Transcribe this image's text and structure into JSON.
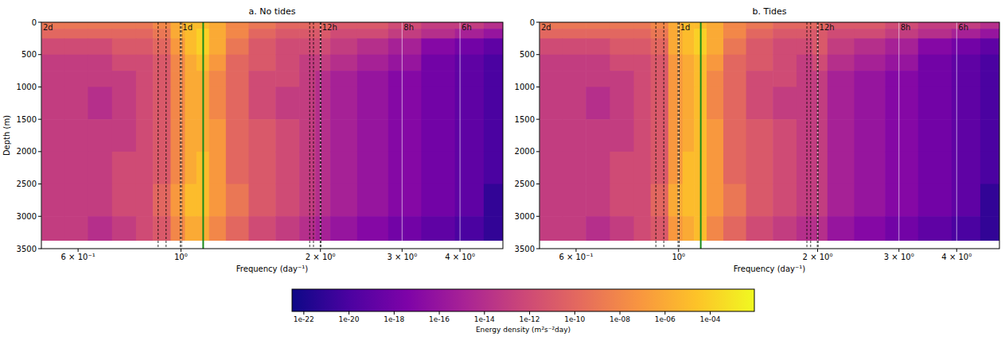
{
  "chart_data": [
    {
      "type": "heatmap",
      "title": "a. No tides",
      "x_label": "Frequency (day⁻¹)",
      "y_label": "Depth (m)",
      "log": "x",
      "grid": false,
      "xlim": [
        0.5,
        4.95
      ],
      "ylim": [
        3500,
        0
      ],
      "xticks": [
        {
          "value": 0.6,
          "label": "6 × 10⁻¹"
        },
        {
          "value": 1,
          "label": "10⁰"
        },
        {
          "value": 2,
          "label": "2 × 10⁰"
        },
        {
          "value": 3,
          "label": "3 × 10⁰"
        },
        {
          "value": 4,
          "label": "4 × 10⁰"
        }
      ],
      "yticks": [
        0,
        500,
        1000,
        1500,
        2000,
        2500,
        3000,
        3500
      ],
      "period_lines": [
        {
          "x": 0.5,
          "label": "2d"
        },
        {
          "x": 1,
          "label": "1d"
        },
        {
          "x": 2,
          "label": "12h"
        },
        {
          "x": 3,
          "label": "8h"
        },
        {
          "x": 4,
          "label": "6h"
        }
      ],
      "tidal_lines": [
        0.893,
        0.929,
        0.997,
        1.003,
        1.896,
        1.932,
        1.997,
        2.005
      ],
      "inertial_line": 1.117,
      "x_edges": [
        0.5,
        0.56,
        0.63,
        0.71,
        0.8,
        0.87,
        0.95,
        1.02,
        1.08,
        1.15,
        1.25,
        1.4,
        1.6,
        1.8,
        1.95,
        2.1,
        2.4,
        2.8,
        3.3,
        3.9,
        4.5,
        4.95
      ],
      "y_edges": [
        0,
        100,
        250,
        500,
        750,
        1000,
        1500,
        2000,
        2500,
        3000,
        3370
      ],
      "cells": [
        [
          1e-09,
          1e-09,
          1e-09,
          1e-09,
          1e-09,
          1e-08,
          1e-06,
          1e-05,
          1e-05,
          1e-06,
          1e-08,
          1e-09,
          1e-10,
          1e-10,
          1e-10,
          1e-11,
          1e-11,
          1e-12,
          1e-13,
          1e-13,
          1e-14
        ],
        [
          1e-10,
          1e-10,
          1e-10,
          1e-10,
          1e-10,
          1e-09,
          1e-06,
          1e-05,
          0.0001,
          1e-06,
          1e-08,
          1e-10,
          1e-11,
          1e-11,
          1e-11,
          1e-12,
          1e-12,
          1e-13,
          1e-14,
          1e-15,
          1e-16
        ],
        [
          1e-12,
          1e-12,
          1e-12,
          1e-11,
          1e-11,
          1e-10,
          1e-07,
          1e-05,
          0.0001,
          1e-06,
          1e-09,
          1e-11,
          1e-12,
          1e-12,
          1e-12,
          1e-13,
          1e-14,
          1e-15,
          1e-17,
          1e-18,
          1e-19
        ],
        [
          1e-13,
          1e-13,
          1e-13,
          1e-12,
          1e-12,
          1e-11,
          1e-08,
          1e-06,
          1e-05,
          1e-07,
          1e-10,
          1e-11,
          1e-12,
          1e-13,
          1e-13,
          1e-14,
          1e-15,
          1e-16,
          1e-18,
          1e-19,
          1e-20
        ],
        [
          1e-13,
          1e-13,
          1e-13,
          1e-13,
          1e-12,
          1e-11,
          1e-08,
          1e-06,
          1e-06,
          1e-08,
          1e-10,
          1e-12,
          1e-12,
          1e-13,
          1e-14,
          1e-15,
          1e-16,
          1e-17,
          1e-18,
          1e-19,
          1e-20
        ],
        [
          1e-13,
          1e-13,
          1e-14,
          1e-13,
          1e-12,
          1e-11,
          1e-08,
          1e-06,
          1e-06,
          1e-08,
          1e-10,
          1e-12,
          1e-13,
          1e-13,
          1e-14,
          1e-15,
          1e-16,
          1e-17,
          1e-18,
          1e-19,
          1e-20
        ],
        [
          1e-13,
          1e-13,
          1e-13,
          1e-13,
          1e-12,
          1e-11,
          1e-08,
          1e-06,
          1e-06,
          1e-07,
          1e-10,
          1e-11,
          1e-12,
          1e-13,
          1e-14,
          1e-15,
          1e-16,
          1e-17,
          1e-18,
          1e-19,
          1e-20
        ],
        [
          1e-13,
          1e-13,
          1e-13,
          1e-12,
          1e-12,
          1e-11,
          1e-08,
          1e-06,
          1e-05,
          1e-07,
          1e-10,
          1e-11,
          1e-12,
          1e-13,
          1e-14,
          1e-15,
          1e-16,
          1e-17,
          1e-18,
          1e-19,
          1e-20
        ],
        [
          1e-13,
          1e-13,
          1e-13,
          1e-12,
          1e-12,
          1e-10,
          1e-07,
          1e-05,
          1e-05,
          1e-07,
          1e-09,
          1e-11,
          1e-12,
          1e-13,
          1e-14,
          1e-15,
          1e-16,
          1e-17,
          1e-18,
          1e-19,
          1e-21
        ],
        [
          1e-13,
          1e-13,
          1e-14,
          1e-13,
          1e-12,
          1e-11,
          1e-08,
          1e-06,
          1e-06,
          1e-08,
          1e-10,
          1e-12,
          1e-13,
          1e-14,
          1e-15,
          1e-16,
          1e-17,
          1e-18,
          1e-19,
          1e-20,
          1e-21
        ]
      ]
    },
    {
      "type": "heatmap",
      "title": "b. Tides",
      "x_label": "Frequency (day⁻¹)",
      "log": "x",
      "grid": false,
      "xlim": [
        0.5,
        4.95
      ],
      "ylim": [
        3500,
        0
      ],
      "xticks": [
        {
          "value": 0.6,
          "label": "6 × 10⁻¹"
        },
        {
          "value": 1,
          "label": "10⁰"
        },
        {
          "value": 2,
          "label": "2 × 10⁰"
        },
        {
          "value": 3,
          "label": "3 × 10⁰"
        },
        {
          "value": 4,
          "label": "4 × 10⁰"
        }
      ],
      "yticks": [
        0,
        500,
        1000,
        1500,
        2000,
        2500,
        3000,
        3500
      ],
      "period_lines": [
        {
          "x": 0.5,
          "label": "2d"
        },
        {
          "x": 1,
          "label": "1d"
        },
        {
          "x": 2,
          "label": "12h"
        },
        {
          "x": 3,
          "label": "8h"
        },
        {
          "x": 4,
          "label": "6h"
        }
      ],
      "tidal_lines": [
        0.893,
        0.929,
        0.997,
        1.003,
        1.896,
        1.932,
        1.997,
        2.005
      ],
      "inertial_line": 1.117,
      "x_edges": [
        0.5,
        0.56,
        0.63,
        0.71,
        0.8,
        0.87,
        0.95,
        1.02,
        1.08,
        1.15,
        1.25,
        1.4,
        1.6,
        1.8,
        1.95,
        2.1,
        2.4,
        2.8,
        3.3,
        3.9,
        4.5,
        4.95
      ],
      "y_edges": [
        0,
        100,
        250,
        500,
        750,
        1000,
        1500,
        2000,
        2500,
        3000,
        3370
      ],
      "cells": [
        [
          1e-09,
          1e-09,
          1e-09,
          1e-09,
          1e-09,
          1e-08,
          1e-06,
          1e-05,
          1e-05,
          1e-06,
          1e-08,
          1e-09,
          1e-10,
          1e-10,
          1e-10,
          1e-11,
          1e-11,
          1e-12,
          1e-13,
          1e-13,
          1e-14
        ],
        [
          1e-10,
          1e-10,
          1e-10,
          1e-10,
          1e-10,
          1e-09,
          1e-06,
          1e-05,
          0.0001,
          1e-06,
          1e-08,
          1e-10,
          1e-11,
          1e-11,
          1e-11,
          1e-12,
          1e-12,
          1e-13,
          1e-14,
          1e-15,
          1e-16
        ],
        [
          1e-12,
          1e-12,
          1e-12,
          1e-11,
          1e-11,
          1e-10,
          1e-06,
          1e-05,
          0.0001,
          1e-06,
          1e-09,
          1e-11,
          1e-12,
          1e-12,
          1e-11,
          1e-13,
          1e-14,
          1e-15,
          1e-17,
          1e-18,
          1e-19
        ],
        [
          1e-13,
          1e-13,
          1e-13,
          1e-12,
          1e-12,
          1e-11,
          1e-07,
          1e-06,
          1e-05,
          1e-07,
          1e-10,
          1e-11,
          1e-12,
          1e-13,
          1e-12,
          1e-14,
          1e-15,
          1e-16,
          1e-18,
          1e-19,
          1e-20
        ],
        [
          1e-13,
          1e-13,
          1e-13,
          1e-13,
          1e-12,
          1e-11,
          1e-07,
          1e-06,
          1e-05,
          1e-08,
          1e-10,
          1e-12,
          1e-12,
          1e-13,
          1e-13,
          1e-15,
          1e-16,
          1e-17,
          1e-18,
          1e-19,
          1e-20
        ],
        [
          1e-13,
          1e-13,
          1e-14,
          1e-13,
          1e-12,
          1e-11,
          1e-07,
          1e-06,
          1e-05,
          1e-08,
          1e-10,
          1e-12,
          1e-13,
          1e-13,
          1e-13,
          1e-15,
          1e-16,
          1e-17,
          1e-18,
          1e-19,
          1e-20
        ],
        [
          1e-13,
          1e-13,
          1e-13,
          1e-13,
          1e-12,
          1e-11,
          1e-07,
          1e-06,
          1e-05,
          1e-07,
          1e-10,
          1e-11,
          1e-12,
          1e-13,
          1e-13,
          1e-15,
          1e-16,
          1e-17,
          1e-18,
          1e-19,
          1e-20
        ],
        [
          1e-13,
          1e-13,
          1e-13,
          1e-12,
          1e-12,
          1e-11,
          1e-07,
          1e-05,
          1e-05,
          1e-07,
          1e-10,
          1e-11,
          1e-12,
          1e-13,
          1e-13,
          1e-15,
          1e-16,
          1e-17,
          1e-18,
          1e-19,
          1e-20
        ],
        [
          1e-13,
          1e-13,
          1e-13,
          1e-12,
          1e-12,
          1e-10,
          1e-06,
          1e-05,
          1e-05,
          1e-07,
          1e-09,
          1e-11,
          1e-12,
          1e-13,
          1e-13,
          1e-15,
          1e-16,
          1e-17,
          1e-18,
          1e-19,
          1e-21
        ],
        [
          1e-13,
          1e-13,
          1e-14,
          1e-13,
          1e-12,
          1e-11,
          1e-07,
          1e-06,
          1e-05,
          1e-08,
          1e-10,
          1e-12,
          1e-13,
          1e-14,
          1e-14,
          1e-16,
          1e-17,
          1e-18,
          1e-19,
          1e-20,
          1e-21
        ]
      ]
    }
  ],
  "colorbar": {
    "label": "Energy density (m²s⁻²day)",
    "lim": [
      3e-23,
      0.009
    ],
    "ticks": [
      {
        "value": 1e-22,
        "label": "1e-22"
      },
      {
        "value": 1e-20,
        "label": "1e-20"
      },
      {
        "value": 1e-18,
        "label": "1e-18"
      },
      {
        "value": 1e-16,
        "label": "1e-16"
      },
      {
        "value": 1e-14,
        "label": "1e-14"
      },
      {
        "value": 1e-12,
        "label": "1e-12"
      },
      {
        "value": 1e-10,
        "label": "1e-10"
      },
      {
        "value": 1e-08,
        "label": "1e-08"
      },
      {
        "value": 1e-06,
        "label": "1e-06"
      },
      {
        "value": 0.0001,
        "label": "1e-04"
      }
    ]
  }
}
